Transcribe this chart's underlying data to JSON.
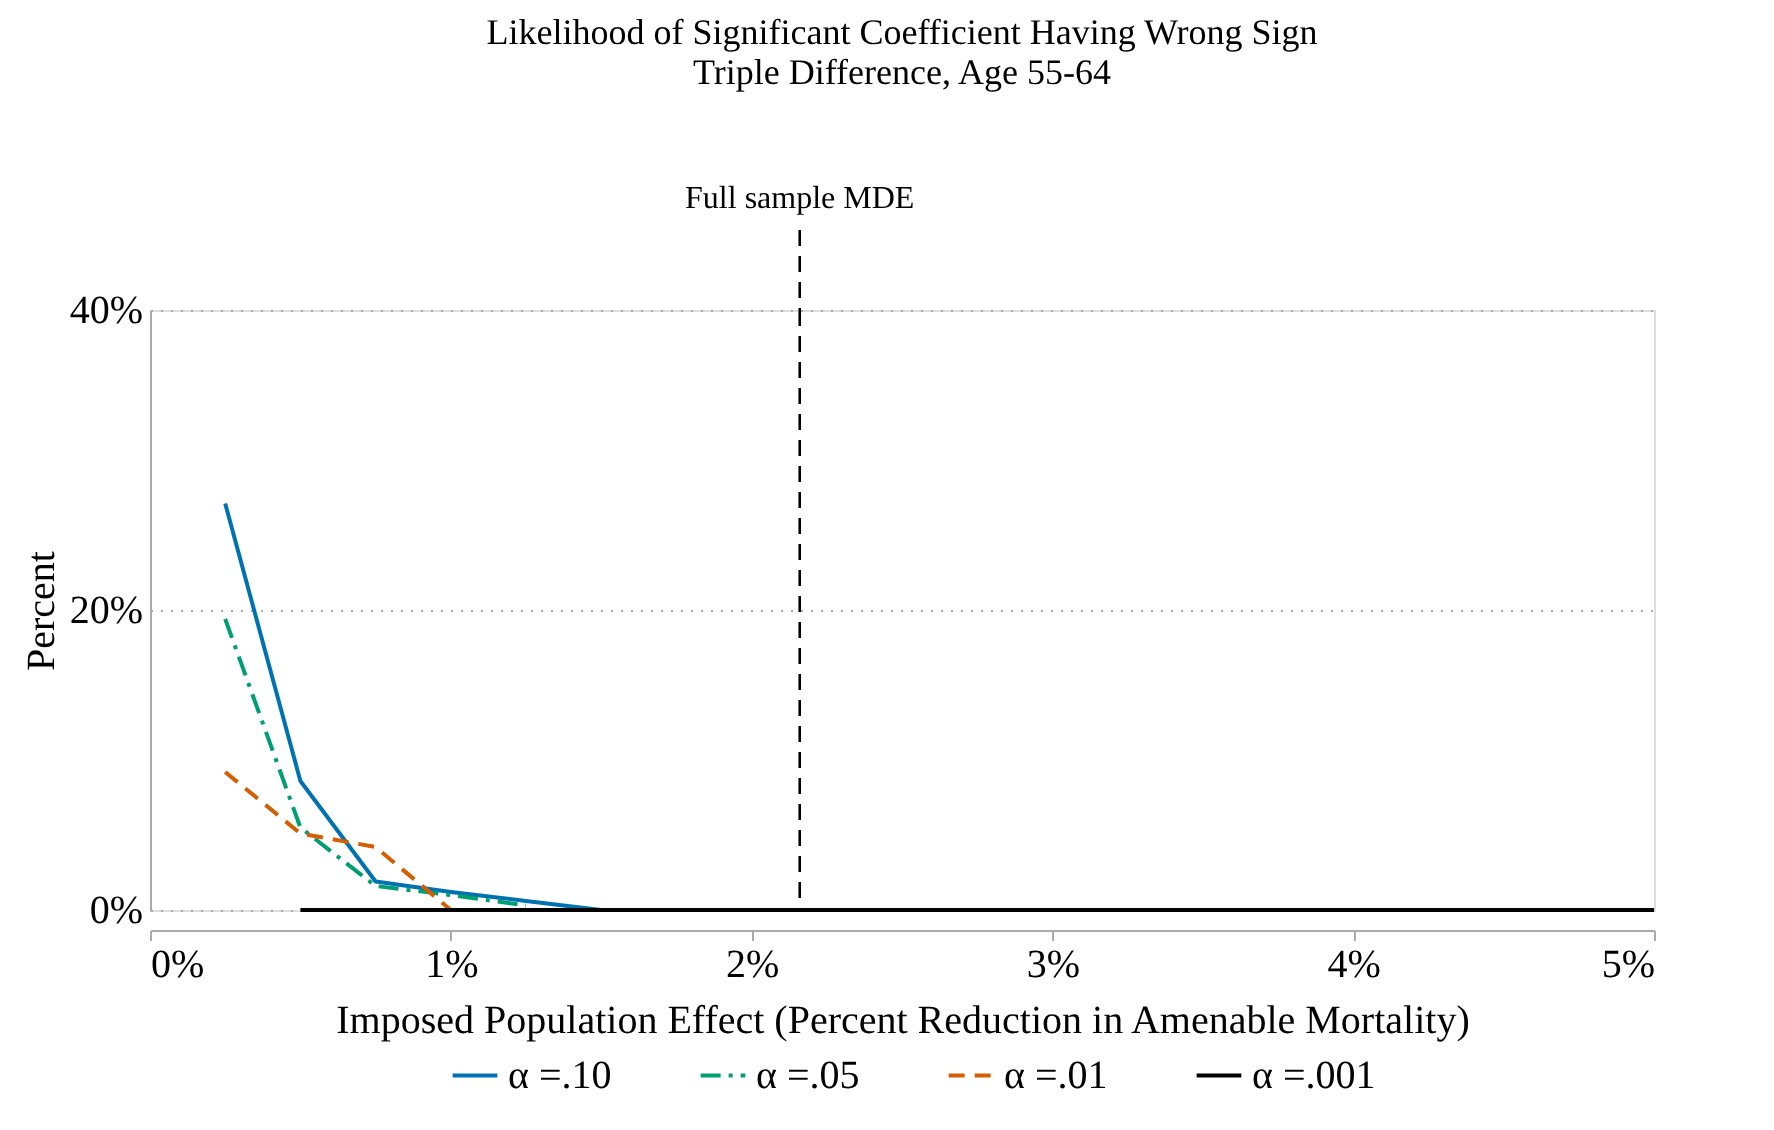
{
  "chart_data": {
    "type": "line",
    "title": "Likelihood of Significant Coefficient Having Wrong Sign",
    "subtitle": "Triple Difference, Age 55-64",
    "xlabel": "Imposed Population Effect (Percent Reduction in Amenable Mortality)",
    "ylabel": "Percent",
    "xlim": [
      0,
      5
    ],
    "xticks": [
      {
        "value": 0,
        "label": "0%"
      },
      {
        "value": 1,
        "label": "1%"
      },
      {
        "value": 2,
        "label": "2%"
      },
      {
        "value": 3,
        "label": "3%"
      },
      {
        "value": 4,
        "label": "4%"
      },
      {
        "value": 5,
        "label": "5%"
      }
    ],
    "ylim": [
      0,
      40
    ],
    "yticks": [
      {
        "value": 0,
        "label": "0%"
      },
      {
        "value": 20,
        "label": "20%"
      },
      {
        "value": 40,
        "label": "40%"
      }
    ],
    "grid": "y",
    "legend": "bottom",
    "marker": "none",
    "ref_lines": [
      {
        "axis": "x",
        "value": 2.16,
        "label": "Full sample MDE",
        "line_style": "dashed",
        "color": "#000000"
      }
    ],
    "series": [
      {
        "name": "α =.10",
        "color": "#0072b2",
        "line_style": "solid",
        "x": [
          0.25,
          0.5,
          0.75,
          1.0,
          1.25,
          1.5
        ],
        "values": [
          27.1,
          8.6,
          1.9,
          1.2,
          0.6,
          0
        ]
      },
      {
        "name": "α =.05",
        "color": "#009e73",
        "line_style": "dashdot",
        "x": [
          0.25,
          0.5,
          0.75,
          1.0,
          1.25
        ],
        "values": [
          19.4,
          5.5,
          1.6,
          1.0,
          0.3
        ]
      },
      {
        "name": "α =.01",
        "color": "#d55e00",
        "line_style": "dashed",
        "x": [
          0.25,
          0.5,
          0.75,
          1.0
        ],
        "values": [
          9.2,
          5.1,
          4.2,
          0
        ]
      },
      {
        "name": "α =.001",
        "color": "#000000",
        "line_style": "solid",
        "x": [
          0.5,
          5.0
        ],
        "values": [
          0,
          0
        ]
      }
    ]
  }
}
